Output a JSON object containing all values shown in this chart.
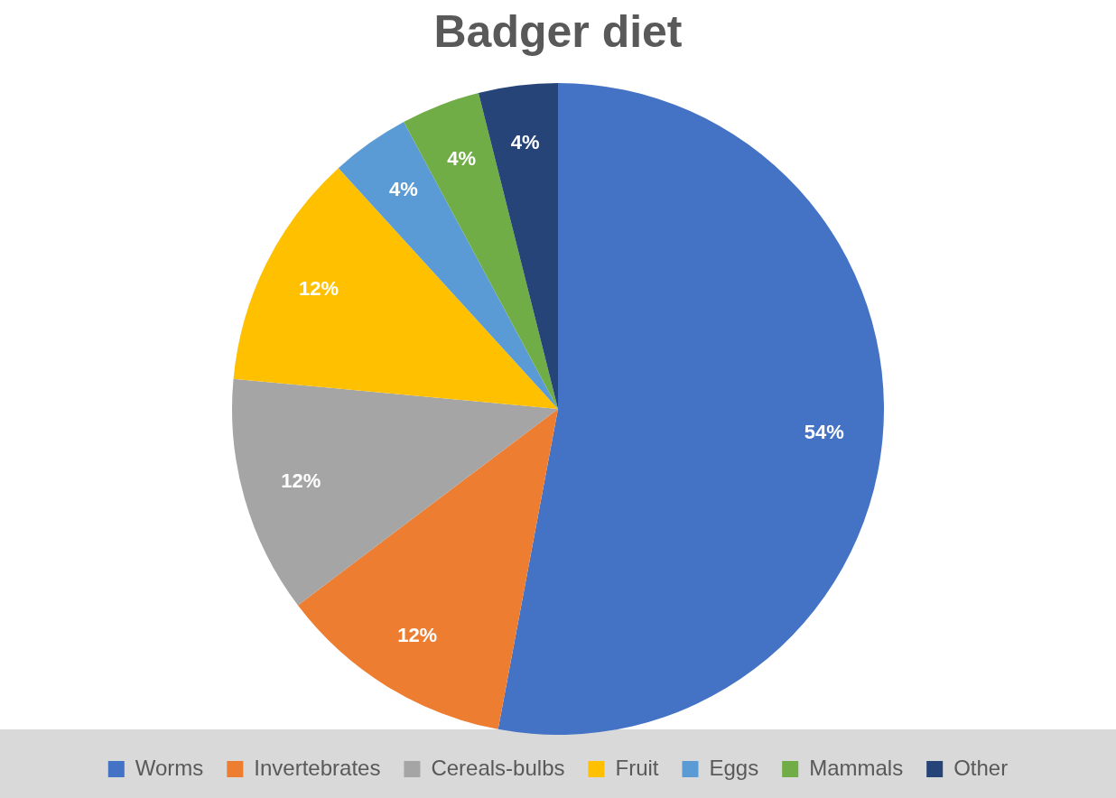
{
  "chart_data": {
    "type": "pie",
    "title": "Badger diet",
    "categories": [
      "Worms",
      "Invertebrates",
      "Cereals-bulbs",
      "Fruit",
      "Eggs",
      "Mammals",
      "Other"
    ],
    "values": [
      54,
      12,
      12,
      12,
      4,
      4,
      4
    ],
    "colors": [
      "#4472c4",
      "#ed7d31",
      "#a5a5a5",
      "#ffc000",
      "#5b9bd5",
      "#70ad47",
      "#264478"
    ],
    "value_labels": [
      "54%",
      "12%",
      "12%",
      "12%",
      "4%",
      "4%",
      "4%"
    ],
    "legend": "bottom"
  }
}
